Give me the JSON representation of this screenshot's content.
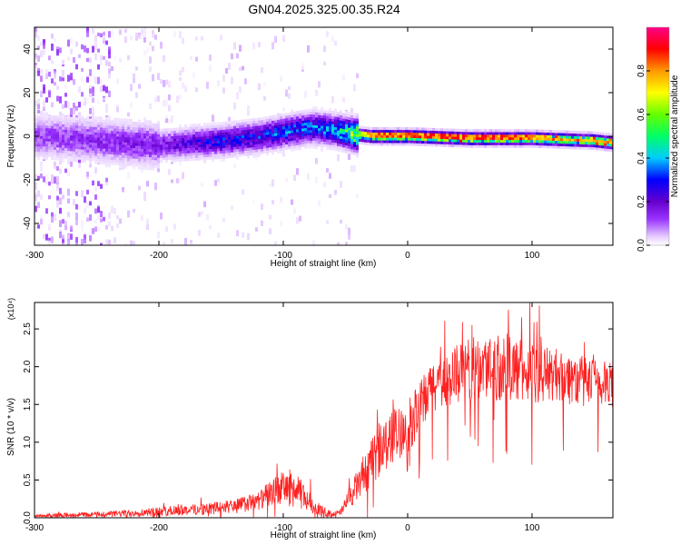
{
  "title": "GN04.2025.325.00.35.R24",
  "chart_data": [
    {
      "type": "heatmap",
      "xlabel": "Height of straight line (km)",
      "ylabel": "Frequency (Hz)",
      "xlim": [
        -300,
        165
      ],
      "ylim": [
        -50,
        50
      ],
      "xticks": [
        "-300",
        "-200",
        "-100",
        "0",
        "100"
      ],
      "yticks": [
        "-40",
        "-20",
        "0",
        "20",
        "40"
      ],
      "colorbar": {
        "label": "Normalized spectral amplitude",
        "range": [
          0,
          1
        ],
        "ticks": [
          "0.0",
          "0.2",
          "0.4",
          "0.6",
          "0.8"
        ],
        "colormap": [
          "#ffffff",
          "#e6ccff",
          "#9933ff",
          "#6600cc",
          "#0000ff",
          "#00ccff",
          "#00ff66",
          "#99ff00",
          "#ffff00",
          "#ff9900",
          "#ff0000",
          "#ff0088"
        ]
      },
      "ridge": [
        {
          "x": -290,
          "freq": 0,
          "amp": 0.18
        },
        {
          "x": -250,
          "freq": -2,
          "amp": 0.2
        },
        {
          "x": -200,
          "freq": -4,
          "amp": 0.22
        },
        {
          "x": -175,
          "freq": -3,
          "amp": 0.28
        },
        {
          "x": -150,
          "freq": -2,
          "amp": 0.33
        },
        {
          "x": -120,
          "freq": 0,
          "amp": 0.35
        },
        {
          "x": -100,
          "freq": 2,
          "amp": 0.38
        },
        {
          "x": -80,
          "freq": 4,
          "amp": 0.4
        },
        {
          "x": -60,
          "freq": 3,
          "amp": 0.42
        },
        {
          "x": -45,
          "freq": 1,
          "amp": 0.6
        },
        {
          "x": -30,
          "freq": 0,
          "amp": 0.85
        },
        {
          "x": 0,
          "freq": 0,
          "amp": 0.9
        },
        {
          "x": 50,
          "freq": -1,
          "amp": 0.9
        },
        {
          "x": 100,
          "freq": -1,
          "amp": 0.88
        },
        {
          "x": 150,
          "freq": -2,
          "amp": 0.85
        },
        {
          "x": 165,
          "freq": -3,
          "amp": 0.85
        }
      ]
    },
    {
      "type": "line",
      "xlabel": "Height of straight line (km)",
      "ylabel": "SNR (10 * v/v)",
      "multiplier": "(x10⁴)",
      "xlim": [
        -300,
        165
      ],
      "ylim": [
        0,
        2.85
      ],
      "xticks": [
        "-300",
        "-200",
        "-100",
        "0",
        "100"
      ],
      "yticks": [
        "0.0",
        "0.5",
        "1.0",
        "1.5",
        "2.0",
        "2.5"
      ],
      "color": "#ff2020",
      "series": [
        {
          "x": [
            -300,
            -270,
            -240,
            -200,
            -160,
            -140,
            -120,
            -105,
            -95,
            -85,
            -75,
            -65,
            -55,
            -45,
            -38,
            -30,
            -20,
            -10,
            0,
            10,
            20,
            30,
            40,
            60,
            80,
            100,
            120,
            140,
            165
          ],
          "y": [
            0.02,
            0.04,
            0.05,
            0.08,
            0.12,
            0.15,
            0.22,
            0.38,
            0.4,
            0.3,
            0.15,
            0.06,
            0.05,
            0.3,
            0.5,
            0.7,
            0.95,
            1.1,
            1.2,
            1.45,
            1.75,
            1.8,
            1.9,
            2.0,
            2.0,
            1.9,
            1.9,
            1.8,
            1.75
          ],
          "spread": [
            0.02,
            0.03,
            0.04,
            0.06,
            0.08,
            0.1,
            0.12,
            0.2,
            0.25,
            0.2,
            0.1,
            0.05,
            0.05,
            0.15,
            0.25,
            0.3,
            0.35,
            0.35,
            0.35,
            0.35,
            0.35,
            0.35,
            0.4,
            0.45,
            0.45,
            0.4,
            0.35,
            0.35,
            0.3
          ]
        }
      ]
    }
  ]
}
